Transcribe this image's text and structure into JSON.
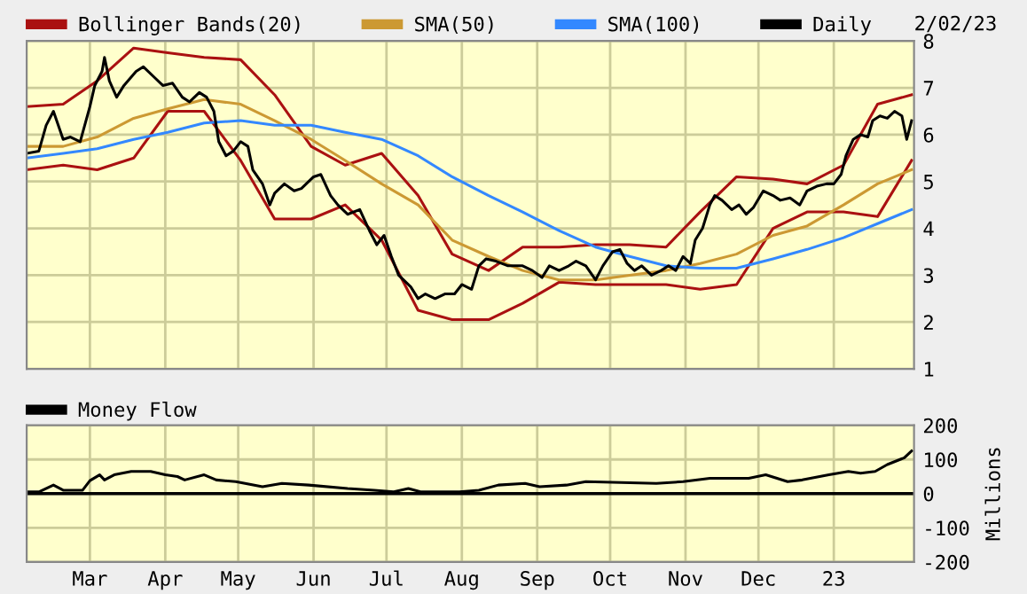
{
  "chart_data": [
    {
      "type": "line",
      "annotations": [
        "2/02/23"
      ],
      "legend": "top",
      "grid": true,
      "tick_labels": "y",
      "xlim": [
        "2022-02-03",
        "2023-02-03"
      ],
      "xticks": [
        {
          "value": "2022-03-01",
          "label": null
        },
        {
          "value": "2022-04-01",
          "label": null
        },
        {
          "value": "2022-05-01",
          "label": null
        },
        {
          "value": "2022-06-01",
          "label": null
        },
        {
          "value": "2022-07-01",
          "label": null
        },
        {
          "value": "2022-08-01",
          "label": null
        },
        {
          "value": "2022-09-01",
          "label": null
        },
        {
          "value": "2022-10-01",
          "label": null
        },
        {
          "value": "2022-11-01",
          "label": null
        },
        {
          "value": "2022-12-01",
          "label": null
        },
        {
          "value": "2023-01-01",
          "label": null
        }
      ],
      "ylim": [
        1,
        8
      ],
      "yticks": [
        1,
        2,
        3,
        4,
        5,
        6,
        7,
        8
      ],
      "series": [
        {
          "name": "Bollinger Bands(20)",
          "color": "#aa1111",
          "x": [
            "2022-02-03",
            "2022-02-18",
            "2022-03-04",
            "2022-03-19",
            "2022-04-02",
            "2022-04-17",
            "2022-05-02",
            "2022-05-16",
            "2022-05-31",
            "2022-06-14",
            "2022-06-29",
            "2022-07-14",
            "2022-07-28",
            "2022-08-12",
            "2022-08-26",
            "2022-09-10",
            "2022-09-25",
            "2022-10-09",
            "2022-10-24",
            "2022-11-07",
            "2022-11-22",
            "2022-12-07",
            "2022-12-21",
            "2023-01-05",
            "2023-01-19",
            "2023-02-02"
          ],
          "values": [
            6.6,
            6.65,
            7.15,
            7.85,
            7.75,
            7.65,
            7.6,
            6.85,
            5.75,
            5.35,
            5.6,
            4.7,
            3.45,
            3.1,
            3.6,
            3.6,
            3.65,
            3.65,
            3.6,
            4.35,
            5.1,
            5.05,
            4.95,
            5.35,
            6.65,
            6.85
          ]
        },
        {
          "color": "#aa1111",
          "x": [
            "2022-02-03",
            "2022-02-18",
            "2022-03-04",
            "2022-03-19",
            "2022-04-02",
            "2022-04-17",
            "2022-05-02",
            "2022-05-16",
            "2022-05-31",
            "2022-06-14",
            "2022-06-29",
            "2022-07-14",
            "2022-07-28",
            "2022-08-12",
            "2022-08-26",
            "2022-09-10",
            "2022-09-25",
            "2022-10-09",
            "2022-10-24",
            "2022-11-07",
            "2022-11-22",
            "2022-12-07",
            "2022-12-21",
            "2023-01-05",
            "2023-01-19",
            "2023-02-02"
          ],
          "values": [
            5.25,
            5.35,
            5.25,
            5.5,
            6.5,
            6.5,
            5.45,
            4.2,
            4.2,
            4.5,
            3.75,
            2.25,
            2.05,
            2.05,
            2.4,
            2.85,
            2.8,
            2.8,
            2.8,
            2.7,
            2.8,
            4.0,
            4.35,
            4.35,
            4.25,
            5.45
          ]
        },
        {
          "name": "SMA(50)",
          "color": "#cc9933",
          "x": [
            "2022-02-03",
            "2022-02-18",
            "2022-03-04",
            "2022-03-19",
            "2022-04-02",
            "2022-04-17",
            "2022-05-02",
            "2022-05-16",
            "2022-05-31",
            "2022-06-14",
            "2022-06-29",
            "2022-07-14",
            "2022-07-28",
            "2022-08-12",
            "2022-08-26",
            "2022-09-10",
            "2022-09-25",
            "2022-10-09",
            "2022-10-24",
            "2022-11-07",
            "2022-11-22",
            "2022-12-07",
            "2022-12-21",
            "2023-01-05",
            "2023-01-19",
            "2023-02-02"
          ],
          "values": [
            5.75,
            5.75,
            5.95,
            6.35,
            6.55,
            6.75,
            6.65,
            6.3,
            5.9,
            5.45,
            4.95,
            4.5,
            3.75,
            3.4,
            3.1,
            2.9,
            2.9,
            3.0,
            3.1,
            3.25,
            3.45,
            3.85,
            4.05,
            4.5,
            4.95,
            5.25
          ]
        },
        {
          "name": "SMA(100)",
          "color": "#3388ff",
          "x": [
            "2022-02-03",
            "2022-02-18",
            "2022-03-04",
            "2022-03-19",
            "2022-04-02",
            "2022-04-17",
            "2022-05-02",
            "2022-05-16",
            "2022-05-31",
            "2022-06-14",
            "2022-06-29",
            "2022-07-14",
            "2022-07-28",
            "2022-08-12",
            "2022-08-26",
            "2022-09-10",
            "2022-09-25",
            "2022-10-09",
            "2022-10-24",
            "2022-11-07",
            "2022-11-22",
            "2022-12-07",
            "2022-12-21",
            "2023-01-05",
            "2023-01-19",
            "2023-02-02"
          ],
          "values": [
            5.5,
            5.6,
            5.7,
            5.9,
            6.05,
            6.25,
            6.3,
            6.2,
            6.2,
            6.05,
            5.9,
            5.55,
            5.1,
            4.7,
            4.35,
            3.95,
            3.6,
            3.4,
            3.2,
            3.15,
            3.15,
            3.35,
            3.55,
            3.8,
            4.1,
            4.4
          ]
        },
        {
          "name": "Daily",
          "color": "#000000",
          "x": [
            "2022-02-03",
            "2022-02-08",
            "2022-02-11",
            "2022-02-14",
            "2022-02-18",
            "2022-02-21",
            "2022-02-25",
            "2022-03-01",
            "2022-03-03",
            "2022-03-06",
            "2022-03-07",
            "2022-03-09",
            "2022-03-12",
            "2022-03-15",
            "2022-03-20",
            "2022-03-23",
            "2022-03-28",
            "2022-03-31",
            "2022-04-04",
            "2022-04-08",
            "2022-04-11",
            "2022-04-15",
            "2022-04-18",
            "2022-04-21",
            "2022-04-23",
            "2022-04-26",
            "2022-04-29",
            "2022-05-02",
            "2022-05-05",
            "2022-05-07",
            "2022-05-11",
            "2022-05-14",
            "2022-05-16",
            "2022-05-20",
            "2022-05-24",
            "2022-05-27",
            "2022-06-01",
            "2022-06-04",
            "2022-06-08",
            "2022-06-11",
            "2022-06-15",
            "2022-06-20",
            "2022-06-24",
            "2022-06-27",
            "2022-06-30",
            "2022-07-03",
            "2022-07-06",
            "2022-07-11",
            "2022-07-14",
            "2022-07-17",
            "2022-07-21",
            "2022-07-25",
            "2022-07-29",
            "2022-08-01",
            "2022-08-05",
            "2022-08-08",
            "2022-08-11",
            "2022-08-15",
            "2022-08-20",
            "2022-08-23",
            "2022-08-26",
            "2022-08-30",
            "2022-09-03",
            "2022-09-06",
            "2022-09-10",
            "2022-09-14",
            "2022-09-17",
            "2022-09-21",
            "2022-09-25",
            "2022-09-28",
            "2022-10-02",
            "2022-10-05",
            "2022-10-08",
            "2022-10-11",
            "2022-10-14",
            "2022-10-18",
            "2022-10-22",
            "2022-10-25",
            "2022-10-28",
            "2022-10-31",
            "2022-11-03",
            "2022-11-05",
            "2022-11-08",
            "2022-11-11",
            "2022-11-13",
            "2022-11-16",
            "2022-11-20",
            "2022-11-23",
            "2022-11-26",
            "2022-11-29",
            "2022-12-03",
            "2022-12-07",
            "2022-12-10",
            "2022-12-14",
            "2022-12-18",
            "2022-12-21",
            "2022-12-25",
            "2022-12-29",
            "2023-01-01",
            "2023-01-04",
            "2023-01-06",
            "2023-01-09",
            "2023-01-12",
            "2023-01-15",
            "2023-01-17",
            "2023-01-20",
            "2023-01-23",
            "2023-01-26",
            "2023-01-29",
            "2023-01-31",
            "2023-02-02"
          ],
          "values": [
            5.6,
            5.65,
            6.2,
            6.5,
            5.9,
            5.95,
            5.85,
            6.6,
            7.05,
            7.35,
            7.65,
            7.15,
            6.8,
            7.05,
            7.35,
            7.45,
            7.2,
            7.05,
            7.1,
            6.8,
            6.7,
            6.9,
            6.8,
            6.5,
            5.85,
            5.55,
            5.65,
            5.85,
            5.75,
            5.25,
            4.95,
            4.5,
            4.75,
            4.95,
            4.8,
            4.85,
            5.1,
            5.15,
            4.7,
            4.5,
            4.3,
            4.4,
            3.95,
            3.65,
            3.85,
            3.4,
            3.0,
            2.75,
            2.5,
            2.6,
            2.5,
            2.6,
            2.6,
            2.8,
            2.7,
            3.2,
            3.35,
            3.3,
            3.2,
            3.2,
            3.2,
            3.1,
            2.95,
            3.2,
            3.1,
            3.2,
            3.3,
            3.2,
            2.9,
            3.2,
            3.5,
            3.55,
            3.25,
            3.1,
            3.2,
            3.0,
            3.1,
            3.2,
            3.1,
            3.4,
            3.25,
            3.75,
            4.0,
            4.5,
            4.7,
            4.6,
            4.4,
            4.5,
            4.3,
            4.45,
            4.8,
            4.7,
            4.6,
            4.65,
            4.5,
            4.8,
            4.9,
            4.95,
            4.95,
            5.15,
            5.55,
            5.9,
            6.0,
            5.95,
            6.3,
            6.4,
            6.35,
            6.5,
            6.4,
            5.9,
            6.3
          ]
        }
      ]
    },
    {
      "type": "line",
      "ylabel": "Millions",
      "legend": "top left",
      "grid": true,
      "xlim": [
        "2022-02-03",
        "2023-02-03"
      ],
      "xticks": [
        {
          "value": "2022-03-01",
          "label": "Mar"
        },
        {
          "value": "2022-04-01",
          "label": "Apr"
        },
        {
          "value": "2022-05-01",
          "label": "May"
        },
        {
          "value": "2022-06-01",
          "label": "Jun"
        },
        {
          "value": "2022-07-01",
          "label": "Jul"
        },
        {
          "value": "2022-08-01",
          "label": "Aug"
        },
        {
          "value": "2022-09-01",
          "label": "Sep"
        },
        {
          "value": "2022-10-01",
          "label": "Oct"
        },
        {
          "value": "2022-11-01",
          "label": "Nov"
        },
        {
          "value": "2022-12-01",
          "label": "Dec"
        },
        {
          "value": "2023-01-01",
          "label": "23"
        }
      ],
      "ylim": [
        -200,
        200
      ],
      "yticks": [
        -200,
        -100,
        0,
        100,
        200
      ],
      "ref_lines": [
        {
          "axis": "y",
          "value": 0,
          "color": "#000000"
        }
      ],
      "series": [
        {
          "name": "Money Flow",
          "color": "#000000",
          "x": [
            "2022-02-03",
            "2022-02-08",
            "2022-02-14",
            "2022-02-18",
            "2022-02-26",
            "2022-03-01",
            "2022-03-05",
            "2022-03-07",
            "2022-03-11",
            "2022-03-18",
            "2022-03-26",
            "2022-04-01",
            "2022-04-06",
            "2022-04-09",
            "2022-04-17",
            "2022-04-22",
            "2022-04-30",
            "2022-05-11",
            "2022-05-19",
            "2022-05-30",
            "2022-06-15",
            "2022-06-26",
            "2022-07-04",
            "2022-07-10",
            "2022-07-15",
            "2022-07-31",
            "2022-08-08",
            "2022-08-16",
            "2022-08-27",
            "2022-09-02",
            "2022-09-13",
            "2022-09-21",
            "2022-10-20",
            "2022-10-31",
            "2022-11-11",
            "2022-11-27",
            "2022-12-04",
            "2022-12-13",
            "2022-12-19",
            "2022-12-30",
            "2023-01-07",
            "2023-01-12",
            "2023-01-18",
            "2023-01-23",
            "2023-01-30",
            "2023-02-02"
          ],
          "values": [
            5,
            5,
            25,
            10,
            10,
            38,
            55,
            40,
            55,
            65,
            65,
            55,
            50,
            40,
            55,
            40,
            35,
            20,
            30,
            25,
            15,
            10,
            5,
            15,
            5,
            5,
            10,
            25,
            30,
            20,
            25,
            35,
            30,
            35,
            45,
            45,
            55,
            35,
            40,
            55,
            65,
            60,
            65,
            85,
            105,
            125
          ]
        }
      ]
    }
  ]
}
